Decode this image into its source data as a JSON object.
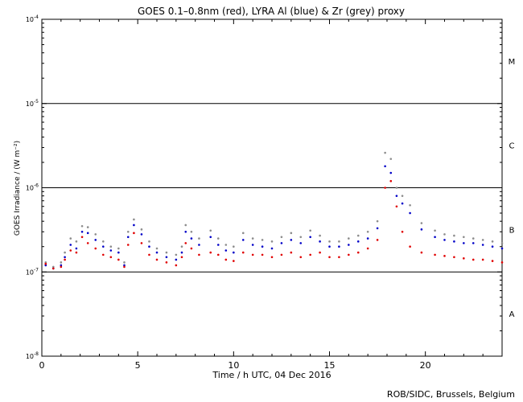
{
  "chart_data": {
    "type": "scatter",
    "title": "GOES 0.1–0.8nm (red), LYRA Al (blue) & Zr (grey) proxy",
    "xlabel": "Time / h UTC, 04 Dec 2016",
    "ylabel": "GOES Irradiance / (W m⁻²)",
    "xlim": [
      0,
      24
    ],
    "ylim": [
      1e-08,
      0.0001
    ],
    "yscale": "log",
    "x_ticks": [
      {
        "value": 0,
        "label": "0"
      },
      {
        "value": 5,
        "label": "5"
      },
      {
        "value": 10,
        "label": "10"
      },
      {
        "value": 15,
        "label": "15"
      },
      {
        "value": 20,
        "label": "20"
      }
    ],
    "y_ticks": [
      {
        "value": 1e-08,
        "base": "10",
        "exp": "-8"
      },
      {
        "value": 1e-07,
        "base": "10",
        "exp": "-7"
      },
      {
        "value": 1e-06,
        "base": "10",
        "exp": "-6"
      },
      {
        "value": 1e-05,
        "base": "10",
        "exp": "-5"
      },
      {
        "value": 0.0001,
        "base": "10",
        "exp": "-4"
      }
    ],
    "flare_class_lines": [
      1e-07,
      1e-06,
      1e-05
    ],
    "flare_classes": [
      {
        "label": "A",
        "value": 3.2e-08
      },
      {
        "label": "B",
        "value": 3.2e-07
      },
      {
        "label": "C",
        "value": 3.2e-06
      },
      {
        "label": "M",
        "value": 3.2e-05
      }
    ],
    "series": [
      {
        "name": "GOES 0.1–0.8nm",
        "color": "#e00000",
        "x": [
          0.2,
          0.6,
          1.0,
          1.2,
          1.5,
          1.8,
          2.1,
          2.4,
          2.8,
          3.2,
          3.6,
          4.0,
          4.3,
          4.5,
          4.8,
          5.2,
          5.6,
          6.0,
          6.5,
          7.0,
          7.3,
          7.5,
          7.8,
          8.2,
          8.8,
          9.2,
          9.6,
          10.0,
          10.5,
          11.0,
          11.5,
          12.0,
          12.5,
          13.0,
          13.5,
          14.0,
          14.5,
          15.0,
          15.5,
          16.0,
          16.5,
          17.0,
          17.5,
          17.9,
          18.2,
          18.5,
          18.8,
          19.2,
          19.8,
          20.5,
          21.0,
          21.5,
          22.0,
          22.5,
          23.0,
          23.5,
          24.0
        ],
        "y": [
          1.25e-07,
          1.1e-07,
          1.15e-07,
          1.4e-07,
          1.8e-07,
          1.7e-07,
          2.6e-07,
          2.2e-07,
          1.9e-07,
          1.6e-07,
          1.5e-07,
          1.4e-07,
          1.15e-07,
          2.1e-07,
          2.9e-07,
          2.2e-07,
          1.6e-07,
          1.4e-07,
          1.3e-07,
          1.2e-07,
          1.5e-07,
          2.2e-07,
          1.9e-07,
          1.6e-07,
          1.7e-07,
          1.6e-07,
          1.4e-07,
          1.35e-07,
          1.7e-07,
          1.6e-07,
          1.6e-07,
          1.5e-07,
          1.6e-07,
          1.7e-07,
          1.5e-07,
          1.6e-07,
          1.7e-07,
          1.5e-07,
          1.5e-07,
          1.6e-07,
          1.7e-07,
          1.9e-07,
          2.4e-07,
          1e-06,
          1.2e-06,
          6e-07,
          3e-07,
          2e-07,
          1.7e-07,
          1.6e-07,
          1.55e-07,
          1.5e-07,
          1.45e-07,
          1.4e-07,
          1.4e-07,
          1.35e-07,
          1.3e-07
        ]
      },
      {
        "name": "LYRA Al",
        "color": "#0000c8",
        "x": [
          0.2,
          0.6,
          1.0,
          1.2,
          1.5,
          1.8,
          2.1,
          2.4,
          2.8,
          3.2,
          3.6,
          4.0,
          4.3,
          4.5,
          4.8,
          5.2,
          5.6,
          6.0,
          6.5,
          7.0,
          7.3,
          7.5,
          7.8,
          8.2,
          8.8,
          9.2,
          9.6,
          10.0,
          10.5,
          11.0,
          11.5,
          12.0,
          12.5,
          13.0,
          13.5,
          14.0,
          14.5,
          15.0,
          15.5,
          16.0,
          16.5,
          17.0,
          17.5,
          17.9,
          18.2,
          18.5,
          18.8,
          19.2,
          19.8,
          20.5,
          21.0,
          21.5,
          22.0,
          22.5,
          23.0,
          23.5,
          24.0
        ],
        "y": [
          1.2e-07,
          1.1e-07,
          1.2e-07,
          1.5e-07,
          2.1e-07,
          1.9e-07,
          3e-07,
          2.9e-07,
          2.4e-07,
          2e-07,
          1.8e-07,
          1.7e-07,
          1.2e-07,
          2.6e-07,
          3.6e-07,
          2.8e-07,
          2e-07,
          1.7e-07,
          1.5e-07,
          1.4e-07,
          1.7e-07,
          3e-07,
          2.5e-07,
          2.1e-07,
          2.6e-07,
          2.1e-07,
          1.8e-07,
          1.7e-07,
          2.4e-07,
          2.1e-07,
          2e-07,
          1.9e-07,
          2.2e-07,
          2.4e-07,
          2.2e-07,
          2.6e-07,
          2.3e-07,
          2e-07,
          2e-07,
          2.1e-07,
          2.3e-07,
          2.5e-07,
          3.3e-07,
          1.8e-06,
          1.5e-06,
          8e-07,
          6.5e-07,
          5e-07,
          3.2e-07,
          2.6e-07,
          2.4e-07,
          2.3e-07,
          2.2e-07,
          2.2e-07,
          2.1e-07,
          2e-07,
          1.9e-07
        ]
      },
      {
        "name": "Zr",
        "color": "#8c8c8c",
        "x": [
          0.2,
          0.6,
          1.0,
          1.2,
          1.5,
          1.8,
          2.1,
          2.4,
          2.8,
          3.2,
          3.6,
          4.0,
          4.3,
          4.5,
          4.8,
          5.2,
          5.6,
          6.0,
          6.5,
          7.0,
          7.3,
          7.5,
          7.8,
          8.2,
          8.8,
          9.2,
          9.6,
          10.0,
          10.5,
          11.0,
          11.5,
          12.0,
          12.5,
          13.0,
          13.5,
          14.0,
          14.5,
          15.0,
          15.5,
          16.0,
          16.5,
          17.0,
          17.5,
          17.9,
          18.2,
          18.5,
          18.8,
          19.2,
          19.8,
          20.5,
          21.0,
          21.5,
          22.0,
          22.5,
          23.0,
          23.5,
          24.0
        ],
        "y": [
          1.3e-07,
          1.15e-07,
          1.3e-07,
          1.7e-07,
          2.5e-07,
          2.3e-07,
          3.5e-07,
          3.4e-07,
          2.8e-07,
          2.3e-07,
          2e-07,
          1.9e-07,
          1.3e-07,
          3e-07,
          4.2e-07,
          3.2e-07,
          2.3e-07,
          1.9e-07,
          1.7e-07,
          1.6e-07,
          2e-07,
          3.6e-07,
          3e-07,
          2.5e-07,
          3.1e-07,
          2.5e-07,
          2.1e-07,
          2e-07,
          2.9e-07,
          2.5e-07,
          2.4e-07,
          2.3e-07,
          2.6e-07,
          2.9e-07,
          2.6e-07,
          3.1e-07,
          2.7e-07,
          2.3e-07,
          2.3e-07,
          2.5e-07,
          2.7e-07,
          3e-07,
          4e-07,
          2.6e-06,
          2.2e-06,
          1e-06,
          8e-07,
          6.2e-07,
          3.8e-07,
          3.1e-07,
          2.8e-07,
          2.7e-07,
          2.6e-07,
          2.5e-07,
          2.4e-07,
          2.3e-07,
          2.2e-07
        ]
      }
    ],
    "credit": "ROB/SIDC, Brussels, Belgium"
  }
}
